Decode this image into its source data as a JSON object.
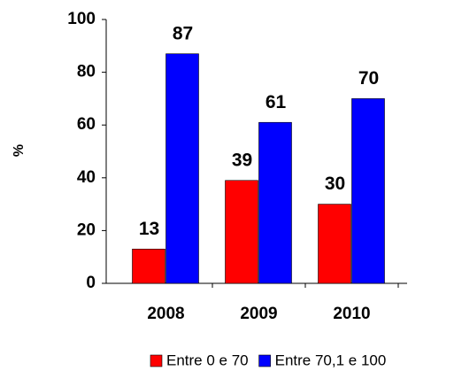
{
  "chart_data": {
    "type": "bar",
    "ylabel": "%",
    "categories": [
      "2008",
      "2009",
      "2010"
    ],
    "series": [
      {
        "name": "Entre 0 e 70",
        "color": "#ff0000",
        "values": [
          13,
          39,
          30
        ]
      },
      {
        "name": "Entre 70,1 e 100",
        "color": "#0000ff",
        "values": [
          87,
          61,
          70
        ]
      }
    ],
    "ylim": [
      0,
      100
    ],
    "yticks": [
      0,
      20,
      40,
      60,
      80,
      100
    ],
    "legend": "bottom"
  }
}
